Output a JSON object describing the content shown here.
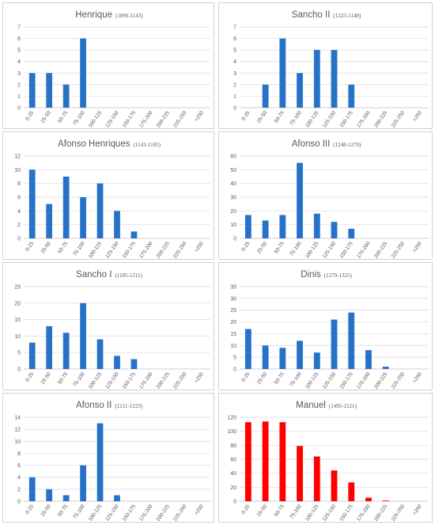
{
  "colors": {
    "blue": "#2672c8",
    "red": "#ff0000"
  },
  "chart_data": [
    {
      "type": "bar",
      "name": "Henrique",
      "range": "(1096-1143)",
      "color": "blue",
      "categories": [
        "0-25",
        "25-50",
        "50-75",
        "75-100",
        "100-125",
        "125-150",
        "150-175",
        "175-200",
        "200-225",
        "225-250",
        ">250"
      ],
      "values": [
        3,
        3,
        2,
        6,
        0,
        0,
        0,
        0,
        0,
        0,
        0
      ],
      "ylim": [
        0,
        7
      ],
      "ystep": 1
    },
    {
      "type": "bar",
      "name": "Sancho II",
      "range": "(1223-1148)",
      "color": "blue",
      "categories": [
        "0-25",
        "25-50",
        "50-75",
        "75-100",
        "100-125",
        "125-150",
        "150-175",
        "175-200",
        "200-225",
        "225-250",
        ">250"
      ],
      "values": [
        0,
        2,
        6,
        3,
        5,
        5,
        2,
        0,
        0,
        0,
        0
      ],
      "ylim": [
        0,
        7
      ],
      "ystep": 1
    },
    {
      "type": "bar",
      "name": "Afonso Henriques",
      "range": "(1143-1185)",
      "color": "blue",
      "categories": [
        "0-25",
        "25-50",
        "50-75",
        "75-100",
        "100-125",
        "125-150",
        "150-175",
        "175-200",
        "200-225",
        "225-250",
        ">250"
      ],
      "values": [
        10,
        5,
        9,
        6,
        8,
        4,
        1,
        0,
        0,
        0,
        0
      ],
      "ylim": [
        0,
        12
      ],
      "ystep": 2
    },
    {
      "type": "bar",
      "name": "Afonso III",
      "range": "(1248-1279)",
      "color": "blue",
      "categories": [
        "0-25",
        "25-50",
        "50-75",
        "75-100",
        "100-125",
        "125-150",
        "150-175",
        "175-200",
        "200-225",
        "225-250",
        ">250"
      ],
      "values": [
        17,
        13,
        17,
        55,
        18,
        12,
        7,
        0,
        0,
        0,
        0
      ],
      "ylim": [
        0,
        60
      ],
      "ystep": 10
    },
    {
      "type": "bar",
      "name": "Sancho I",
      "range": "(1185-1211)",
      "color": "blue",
      "categories": [
        "0-25",
        "25-50",
        "50-75",
        "75-100",
        "100-125",
        "125-150",
        "150-175",
        "175-200",
        "200-225",
        "225-250",
        ">250"
      ],
      "values": [
        8,
        13,
        11,
        20,
        9,
        4,
        3,
        0,
        0,
        0,
        0
      ],
      "ylim": [
        0,
        25
      ],
      "ystep": 5
    },
    {
      "type": "bar",
      "name": "Dinis",
      "range": "(1279-1325)",
      "color": "blue",
      "categories": [
        "0-25",
        "25-50",
        "50-75",
        "75-100",
        "100-125",
        "125-150",
        "150-175",
        "175-200",
        "200-225",
        "225-250",
        ">250"
      ],
      "values": [
        17,
        10,
        9,
        12,
        7,
        21,
        24,
        8,
        1,
        0,
        0
      ],
      "ylim": [
        0,
        35
      ],
      "ystep": 5
    },
    {
      "type": "bar",
      "name": "Afonso II",
      "range": "(1211-1223)",
      "color": "blue",
      "categories": [
        "0-25",
        "25-50",
        "50-75",
        "75-100",
        "100-125",
        "125-150",
        "150-175",
        "175-200",
        "200-225",
        "225-250",
        ">250"
      ],
      "values": [
        4,
        2,
        1,
        6,
        13,
        1,
        0,
        0,
        0,
        0,
        0
      ],
      "ylim": [
        0,
        14
      ],
      "ystep": 2
    },
    {
      "type": "bar",
      "name": "Manuel",
      "range": "(1495-1521)",
      "color": "red",
      "categories": [
        "0-25",
        "25-50",
        "50-75",
        "75-100",
        "100-125",
        "125-150",
        "150-175",
        "175-200",
        "200-225",
        "225-250",
        ">250"
      ],
      "values": [
        113,
        114,
        113,
        79,
        64,
        44,
        27,
        5,
        1,
        0,
        0
      ],
      "ylim": [
        0,
        120
      ],
      "ystep": 20
    }
  ]
}
